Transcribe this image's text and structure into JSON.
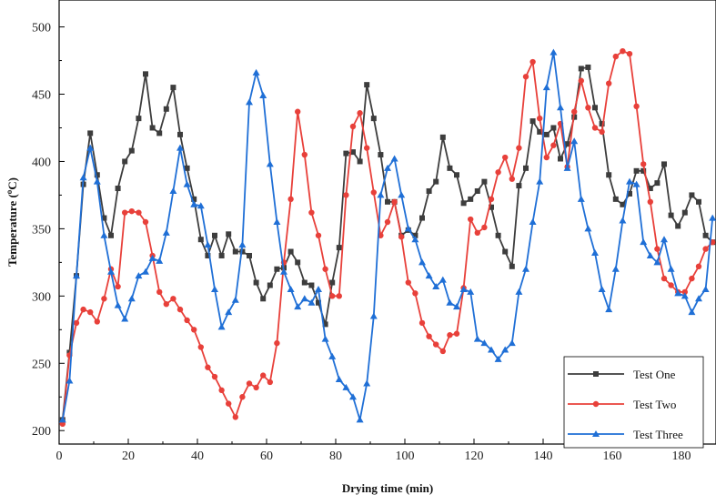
{
  "chart_data": {
    "type": "line",
    "xlabel": "Drying time (min)",
    "ylabel": "Temperature (",
    "ylabel_unit": "C)",
    "ylabel_superscript": "o",
    "xlim": [
      0,
      190
    ],
    "ylim": [
      190,
      520
    ],
    "x_ticks": [
      0,
      20,
      40,
      60,
      80,
      100,
      120,
      140,
      160,
      180
    ],
    "y_ticks": [
      200,
      250,
      300,
      350,
      400,
      450,
      500
    ],
    "legend_position": "bottom-right",
    "series": [
      {
        "name": "Test One",
        "color": "#3d3d3d",
        "marker": "square",
        "x": [
          1,
          3,
          5,
          7,
          9,
          11,
          13,
          15,
          17,
          19,
          21,
          23,
          25,
          27,
          29,
          31,
          33,
          35,
          37,
          39,
          41,
          43,
          45,
          47,
          49,
          51,
          53,
          55,
          57,
          59,
          61,
          63,
          65,
          67,
          69,
          71,
          73,
          75,
          77,
          79,
          81,
          83,
          85,
          87,
          89,
          91,
          93,
          95,
          97,
          99,
          101,
          103,
          105,
          107,
          109,
          111,
          113,
          115,
          117,
          119,
          121,
          123,
          125,
          127,
          129,
          131,
          133,
          135,
          137,
          139,
          141,
          143,
          145,
          147,
          149,
          151,
          153,
          155,
          157,
          159,
          161,
          163,
          165,
          167,
          169,
          171,
          173,
          175,
          177,
          179,
          181,
          183,
          185,
          187,
          189
        ],
        "values": [
          208,
          258,
          315,
          383,
          421,
          390,
          358,
          345,
          380,
          400,
          408,
          432,
          465,
          425,
          421,
          439,
          455,
          420,
          395,
          372,
          342,
          330,
          345,
          330,
          346,
          333,
          333,
          330,
          310,
          298,
          308,
          320,
          321,
          333,
          325,
          310,
          308,
          295,
          279,
          310,
          336,
          406,
          407,
          400,
          457,
          432,
          405,
          370,
          370,
          345,
          349,
          345,
          358,
          378,
          385,
          418,
          395,
          390,
          369,
          372,
          378,
          385,
          366,
          345,
          333,
          322,
          382,
          395,
          430,
          422,
          420,
          425,
          402,
          413,
          433,
          469,
          470,
          440,
          428,
          390,
          372,
          368,
          376,
          393,
          393,
          380,
          384,
          398,
          360,
          352,
          362,
          375,
          370,
          345,
          340
        ]
      },
      {
        "name": "Test Two",
        "color": "#e8403a",
        "marker": "circle",
        "x": [
          1,
          3,
          5,
          7,
          9,
          11,
          13,
          15,
          17,
          19,
          21,
          23,
          25,
          27,
          29,
          31,
          33,
          35,
          37,
          39,
          41,
          43,
          45,
          47,
          49,
          51,
          53,
          55,
          57,
          59,
          61,
          63,
          65,
          67,
          69,
          71,
          73,
          75,
          77,
          79,
          81,
          83,
          85,
          87,
          89,
          91,
          93,
          95,
          97,
          99,
          101,
          103,
          105,
          107,
          109,
          111,
          113,
          115,
          117,
          119,
          121,
          123,
          125,
          127,
          129,
          131,
          133,
          135,
          137,
          139,
          141,
          143,
          145,
          147,
          149,
          151,
          153,
          155,
          157,
          159,
          161,
          163,
          165,
          167,
          169,
          171,
          173,
          175,
          177,
          179,
          181,
          183,
          185,
          187,
          189
        ],
        "values": [
          205,
          256,
          280,
          290,
          288,
          281,
          298,
          320,
          307,
          362,
          363,
          362,
          355,
          330,
          303,
          294,
          298,
          290,
          282,
          275,
          262,
          247,
          240,
          230,
          220,
          210,
          225,
          235,
          232,
          241,
          236,
          265,
          325,
          372,
          437,
          405,
          362,
          345,
          320,
          300,
          300,
          375,
          426,
          436,
          410,
          377,
          345,
          355,
          370,
          344,
          310,
          302,
          280,
          270,
          264,
          259,
          271,
          272,
          306,
          357,
          347,
          351,
          372,
          392,
          403,
          387,
          410,
          463,
          474,
          432,
          403,
          412,
          428,
          396,
          437,
          460,
          440,
          425,
          422,
          458,
          478,
          482,
          480,
          441,
          398,
          370,
          335,
          313,
          308,
          303,
          303,
          313,
          322,
          335,
          340
        ]
      },
      {
        "name": "Test Three",
        "color": "#1f6fd6",
        "marker": "triangle",
        "x": [
          1,
          3,
          5,
          7,
          9,
          11,
          13,
          15,
          17,
          19,
          21,
          23,
          25,
          27,
          29,
          31,
          33,
          35,
          37,
          39,
          41,
          43,
          45,
          47,
          49,
          51,
          53,
          55,
          57,
          59,
          61,
          63,
          65,
          67,
          69,
          71,
          73,
          75,
          77,
          79,
          81,
          83,
          85,
          87,
          89,
          91,
          93,
          95,
          97,
          99,
          101,
          103,
          105,
          107,
          109,
          111,
          113,
          115,
          117,
          119,
          121,
          123,
          125,
          127,
          129,
          131,
          133,
          135,
          137,
          139,
          141,
          143,
          145,
          147,
          149,
          151,
          153,
          155,
          157,
          159,
          161,
          163,
          165,
          167,
          169,
          171,
          173,
          175,
          177,
          179,
          181,
          183,
          185,
          187,
          189
        ],
        "values": [
          208,
          237,
          315,
          388,
          410,
          385,
          345,
          318,
          293,
          283,
          298,
          315,
          318,
          328,
          326,
          347,
          378,
          410,
          383,
          368,
          367,
          338,
          305,
          277,
          288,
          297,
          338,
          444,
          466,
          449,
          398,
          355,
          318,
          305,
          292,
          298,
          295,
          305,
          268,
          255,
          238,
          232,
          225,
          208,
          235,
          285,
          375,
          395,
          402,
          375,
          350,
          342,
          325,
          315,
          307,
          312,
          295,
          292,
          305,
          303,
          268,
          265,
          260,
          253,
          260,
          265,
          303,
          320,
          355,
          385,
          455,
          481,
          440,
          395,
          415,
          372,
          350,
          332,
          305,
          290,
          320,
          356,
          385,
          383,
          340,
          330,
          325,
          342,
          320,
          302,
          300,
          288,
          298,
          305,
          358
        ]
      }
    ]
  }
}
